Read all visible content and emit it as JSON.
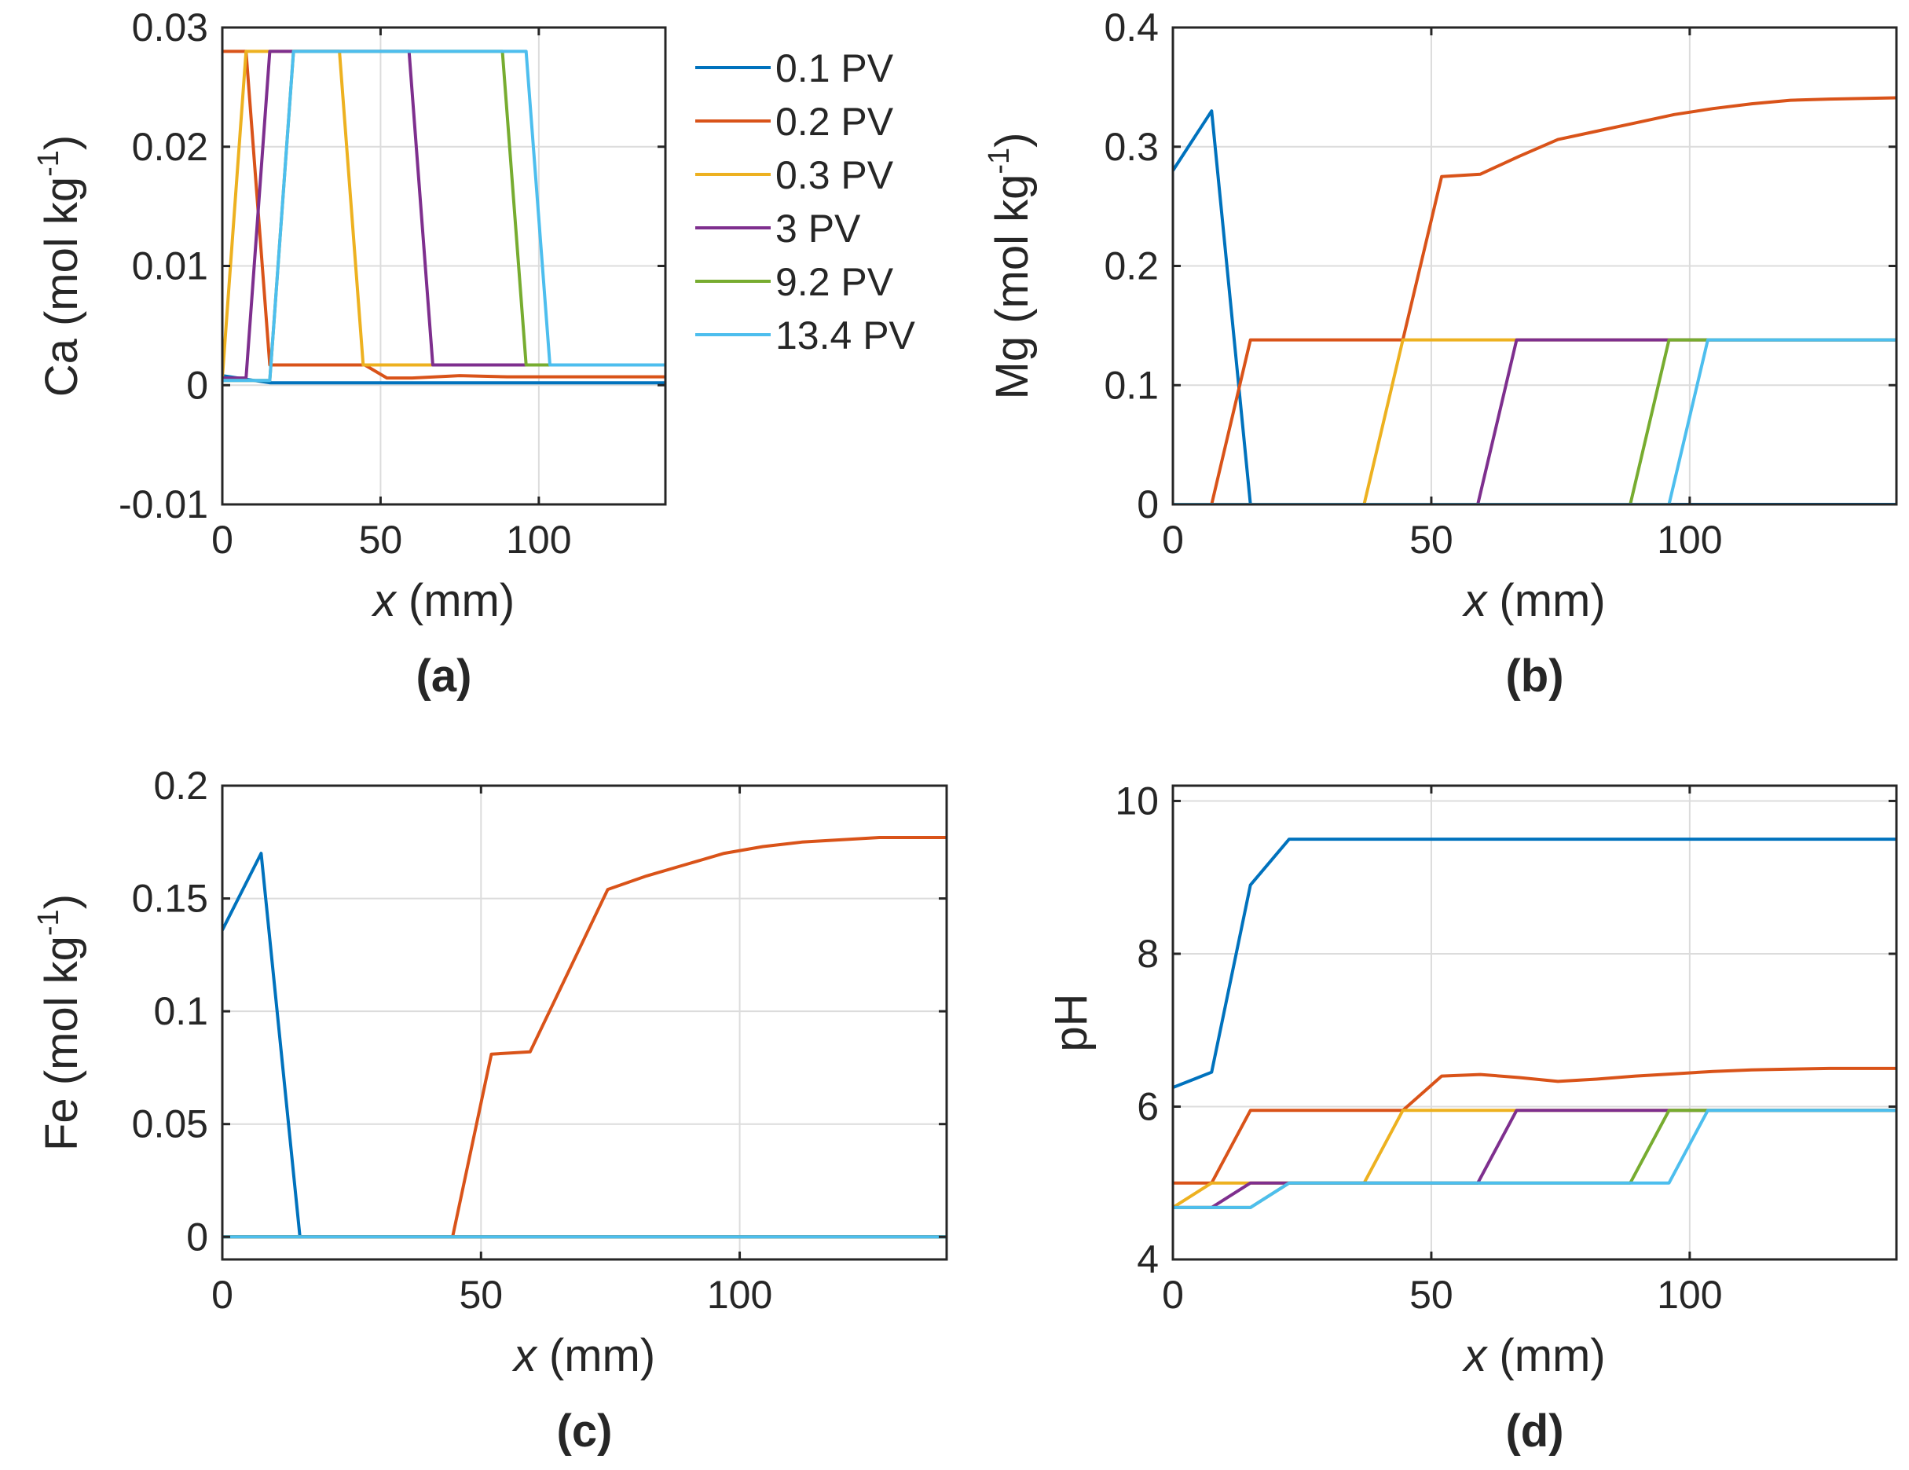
{
  "colors": {
    "s1": "#0072BD",
    "s2": "#D95319",
    "s3": "#EDB120",
    "s4": "#7E2F8E",
    "s5": "#77AC30",
    "s6": "#4DBEEE"
  },
  "legend": [
    "0.1 PV",
    "0.2 PV",
    "0.3 PV",
    "3 PV",
    "9.2 PV",
    "13.4 PV"
  ],
  "chart_data": [
    {
      "type": "line",
      "panel_label": "(a)",
      "ylabel_main": "Ca (mol kg",
      "ylabel_sup": "-1",
      "ylabel_close": ")",
      "xlabel_var": "x",
      "xlabel_unit": " (mm)",
      "xlim": [
        0,
        140
      ],
      "ylim": [
        -0.01,
        0.03
      ],
      "xticks": [
        0,
        50,
        100
      ],
      "xtick_labels": [
        "0",
        "50",
        "100"
      ],
      "yticks": [
        -0.01,
        0,
        0.01,
        0.02,
        0.03
      ],
      "ytick_labels": [
        "-0.01",
        "0",
        "0.01",
        "0.02",
        "0.03"
      ],
      "grid": true,
      "legend_position": "outside-right",
      "series": [
        {
          "name": "0.1 PV",
          "x": [
            0,
            7.5,
            15,
            140
          ],
          "y": [
            0.0008,
            0.0005,
            0.0002,
            0.0002
          ]
        },
        {
          "name": "0.2 PV",
          "x": [
            0,
            7.5,
            15,
            45,
            52,
            60,
            75,
            90,
            140
          ],
          "y": [
            0.028,
            0.028,
            0.0017,
            0.0017,
            0.0006,
            0.0006,
            0.0008,
            0.0007,
            0.0007
          ]
        },
        {
          "name": "0.3 PV",
          "x": [
            0,
            7.5,
            37,
            44.5,
            140
          ],
          "y": [
            0.0006,
            0.028,
            0.028,
            0.0017,
            0.0017
          ]
        },
        {
          "name": "3 PV",
          "x": [
            0,
            7.5,
            15,
            59,
            66.5,
            140
          ],
          "y": [
            0.0006,
            0.0006,
            0.028,
            0.028,
            0.0017,
            0.0017
          ]
        },
        {
          "name": "9.2 PV",
          "x": [
            0,
            15,
            22.5,
            88.5,
            96,
            140
          ],
          "y": [
            0.0004,
            0.0004,
            0.028,
            0.028,
            0.0017,
            0.0017
          ]
        },
        {
          "name": "13.4 PV",
          "x": [
            0,
            15,
            22.5,
            96,
            103.5,
            140
          ],
          "y": [
            0.0004,
            0.0004,
            0.028,
            0.028,
            0.0017,
            0.0017
          ]
        }
      ]
    },
    {
      "type": "line",
      "panel_label": "(b)",
      "ylabel_main": "Mg (mol kg",
      "ylabel_sup": "-1",
      "ylabel_close": ")",
      "xlabel_var": "x",
      "xlabel_unit": " (mm)",
      "xlim": [
        0,
        140
      ],
      "ylim": [
        0,
        0.4
      ],
      "xticks": [
        0,
        50,
        100
      ],
      "xtick_labels": [
        "0",
        "50",
        "100"
      ],
      "yticks": [
        0,
        0.1,
        0.2,
        0.3,
        0.4
      ],
      "ytick_labels": [
        "0",
        "0.1",
        "0.2",
        "0.3",
        "0.4"
      ],
      "grid": true,
      "series": [
        {
          "name": "0.1 PV",
          "x": [
            0,
            7.5,
            15,
            140
          ],
          "y": [
            0.28,
            0.33,
            0,
            0
          ]
        },
        {
          "name": "0.2 PV",
          "x": [
            7.5,
            15,
            44.5,
            52,
            59.5,
            67,
            74.5,
            82,
            89.5,
            97,
            104.5,
            112,
            119.5,
            127,
            140
          ],
          "y": [
            0,
            0.138,
            0.138,
            0.275,
            0.277,
            0.292,
            0.306,
            0.313,
            0.32,
            0.327,
            0.332,
            0.336,
            0.339,
            0.34,
            0.341
          ]
        },
        {
          "name": "0.3 PV",
          "x": [
            0,
            37,
            44.5,
            140
          ],
          "y": [
            0,
            0,
            0.138,
            0.138
          ]
        },
        {
          "name": "3 PV",
          "x": [
            0,
            59,
            66.5,
            140
          ],
          "y": [
            0,
            0,
            0.138,
            0.138
          ]
        },
        {
          "name": "9.2 PV",
          "x": [
            0,
            88.5,
            96,
            140
          ],
          "y": [
            0,
            0,
            0.138,
            0.138
          ]
        },
        {
          "name": "13.4 PV",
          "x": [
            0,
            96,
            103.5,
            140
          ],
          "y": [
            0,
            0,
            0.138,
            0.138
          ]
        }
      ]
    },
    {
      "type": "line",
      "panel_label": "(c)",
      "ylabel_main": "Fe (mol kg",
      "ylabel_sup": "-1",
      "ylabel_close": ")",
      "xlabel_var": "x",
      "xlabel_unit": " (mm)",
      "xlim": [
        0,
        140
      ],
      "ylim": [
        -0.01,
        0.2
      ],
      "xticks": [
        0,
        50,
        100
      ],
      "xtick_labels": [
        "0",
        "50",
        "100"
      ],
      "yticks": [
        0,
        0.05,
        0.1,
        0.15,
        0.2
      ],
      "ytick_labels": [
        "0",
        "0.05",
        "0.1",
        "0.15",
        "0.2"
      ],
      "grid": true,
      "series": [
        {
          "name": "0.1 PV",
          "x": [
            0,
            7.5,
            15,
            140
          ],
          "y": [
            0.136,
            0.17,
            0,
            0
          ]
        },
        {
          "name": "0.2 PV",
          "x": [
            0,
            44.5,
            52,
            59.5,
            67,
            74.5,
            82,
            89.5,
            97,
            104.5,
            112,
            119.5,
            127,
            140
          ],
          "y": [
            0,
            0,
            0.081,
            0.082,
            0.118,
            0.154,
            0.16,
            0.165,
            0.17,
            0.173,
            0.175,
            0.176,
            0.177,
            0.177
          ]
        },
        {
          "name": "0.3 PV",
          "x": [
            0,
            140
          ],
          "y": [
            0,
            0
          ]
        },
        {
          "name": "3 PV",
          "x": [
            0,
            140
          ],
          "y": [
            0,
            0
          ]
        },
        {
          "name": "9.2 PV",
          "x": [
            0,
            140
          ],
          "y": [
            0,
            0
          ]
        },
        {
          "name": "13.4 PV",
          "x": [
            0,
            140
          ],
          "y": [
            0,
            0
          ]
        }
      ]
    },
    {
      "type": "line",
      "panel_label": "(d)",
      "ylabel_main": "pH",
      "ylabel_sup": "",
      "ylabel_close": "",
      "xlabel_var": "x",
      "xlabel_unit": " (mm)",
      "xlim": [
        0,
        140
      ],
      "ylim": [
        4,
        10.2
      ],
      "xticks": [
        0,
        50,
        100
      ],
      "xtick_labels": [
        "0",
        "50",
        "100"
      ],
      "yticks": [
        4,
        6,
        8,
        10
      ],
      "ytick_labels": [
        "4",
        "6",
        "8",
        "10"
      ],
      "grid": true,
      "series": [
        {
          "name": "0.1 PV",
          "x": [
            0,
            7.5,
            15,
            22.5,
            140
          ],
          "y": [
            6.25,
            6.45,
            8.9,
            9.5,
            9.5
          ]
        },
        {
          "name": "0.2 PV",
          "x": [
            0,
            7.5,
            15,
            44.5,
            52,
            59.5,
            67,
            74.5,
            82,
            89.5,
            97,
            104.5,
            112,
            119.5,
            127,
            140
          ],
          "y": [
            5.0,
            5.0,
            5.95,
            5.95,
            6.4,
            6.42,
            6.38,
            6.33,
            6.36,
            6.4,
            6.43,
            6.46,
            6.48,
            6.49,
            6.5,
            6.5
          ]
        },
        {
          "name": "0.3 PV",
          "x": [
            0,
            7.5,
            37,
            44.5,
            140
          ],
          "y": [
            4.68,
            5.0,
            5.0,
            5.95,
            5.95
          ]
        },
        {
          "name": "3 PV",
          "x": [
            0,
            7.5,
            15,
            59,
            66.5,
            140
          ],
          "y": [
            4.68,
            4.68,
            5.0,
            5.0,
            5.95,
            5.95
          ]
        },
        {
          "name": "9.2 PV",
          "x": [
            0,
            15,
            22.5,
            88.5,
            96,
            140
          ],
          "y": [
            4.68,
            4.68,
            5.0,
            5.0,
            5.95,
            5.95
          ]
        },
        {
          "name": "13.4 PV",
          "x": [
            0,
            15,
            22.5,
            96,
            103.5,
            140
          ],
          "y": [
            4.68,
            4.68,
            5.0,
            5.0,
            5.95,
            5.95
          ]
        }
      ]
    }
  ]
}
